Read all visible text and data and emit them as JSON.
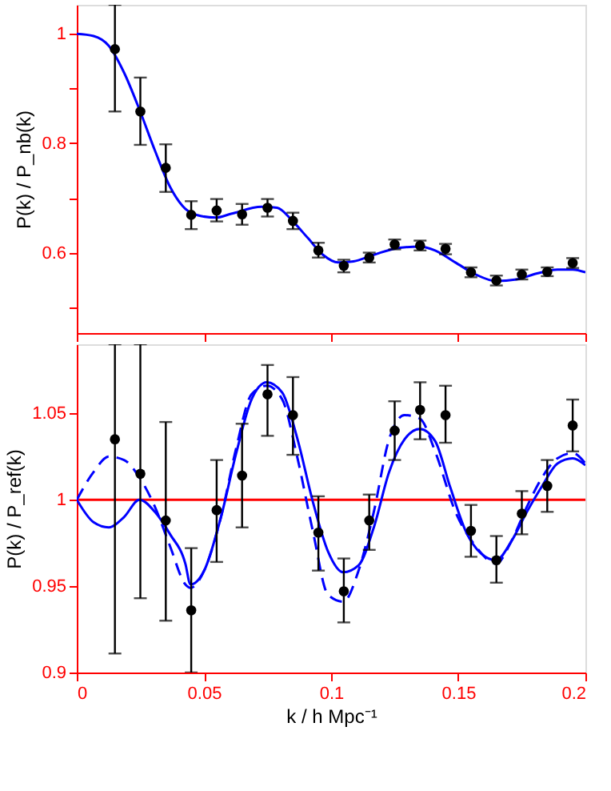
{
  "chart_data": [
    {
      "type": "scatter",
      "ylabel": "P(k) / P_nb(k)",
      "xlim": [
        0,
        0.2
      ],
      "xticks": [
        0,
        0.05,
        0.1,
        0.15,
        0.2
      ],
      "ylim": [
        0.453,
        1.053
      ],
      "yticks": [
        {
          "value": 0.5,
          "label": null
        },
        0.6,
        {
          "value": 0.7,
          "label": null
        },
        0.8,
        {
          "value": 0.9,
          "label": null
        },
        1
      ],
      "tick_labels": "y",
      "grid": false,
      "series": [
        {
          "marker": "circle",
          "color": "#000000",
          "x": [
            0.015,
            0.025,
            0.035,
            0.045,
            0.055,
            0.065,
            0.075,
            0.085,
            0.095,
            0.105,
            0.115,
            0.125,
            0.135,
            0.145,
            0.155,
            0.165,
            0.175,
            0.185,
            0.195
          ],
          "values": [
            0.972,
            0.858,
            0.755,
            0.669,
            0.677,
            0.67,
            0.682,
            0.658,
            0.604,
            0.576,
            0.591,
            0.615,
            0.613,
            0.607,
            0.564,
            0.549,
            0.56,
            0.565,
            0.581
          ],
          "errors": [
            [
              0.858,
              1.053
            ],
            [
              0.797,
              0.92
            ],
            [
              0.711,
              0.798
            ],
            [
              0.643,
              0.694
            ],
            [
              0.657,
              0.698
            ],
            [
              0.651,
              0.689
            ],
            [
              0.666,
              0.698
            ],
            [
              0.643,
              0.673
            ],
            [
              0.591,
              0.618
            ],
            [
              0.564,
              0.587
            ],
            [
              0.582,
              0.6
            ],
            [
              0.606,
              0.624
            ],
            [
              0.604,
              0.622
            ],
            [
              0.597,
              0.616
            ],
            [
              0.555,
              0.573
            ],
            [
              0.54,
              0.558
            ],
            [
              0.551,
              0.569
            ],
            [
              0.557,
              0.573
            ],
            [
              0.572,
              0.59
            ]
          ]
        },
        {
          "type": "line",
          "color": "#0000ff",
          "line_style": "solid",
          "x": [
            0,
            0.0066,
            0.0126,
            0.0186,
            0.0246,
            0.0307,
            0.0367,
            0.0427,
            0.0487,
            0.0547,
            0.0607,
            0.0727,
            0.0788,
            0.0848,
            0.0908,
            0.0968,
            0.1028,
            0.1088,
            0.1168,
            0.1269,
            0.1349,
            0.1409,
            0.1489,
            0.1569,
            0.1649,
            0.1729,
            0.181,
            0.189,
            0.195,
            0.2
          ],
          "values": [
            1.0,
            0.996,
            0.978,
            0.929,
            0.862,
            0.787,
            0.72,
            0.68,
            0.667,
            0.664,
            0.671,
            0.684,
            0.682,
            0.658,
            0.627,
            0.596,
            0.582,
            0.584,
            0.596,
            0.609,
            0.611,
            0.604,
            0.582,
            0.56,
            0.548,
            0.551,
            0.562,
            0.569,
            0.569,
            0.564
          ]
        }
      ]
    },
    {
      "type": "scatter",
      "ylabel": "P(k) / P_ref(k)",
      "xlabel": "k / h Mpc⁻¹",
      "xlim": [
        0,
        0.2
      ],
      "xticks": [
        0,
        0.05,
        0.1,
        0.15,
        0.2
      ],
      "ylim": [
        0.9,
        1.09
      ],
      "yticks": [
        0.9,
        0.95,
        1,
        1.05
      ],
      "grid": false,
      "ref_lines": [
        {
          "axis": "y",
          "value": 1,
          "color": "#ff0000"
        }
      ],
      "series": [
        {
          "marker": "circle",
          "color": "#000000",
          "x": [
            0.015,
            0.025,
            0.035,
            0.045,
            0.055,
            0.065,
            0.075,
            0.085,
            0.095,
            0.105,
            0.115,
            0.125,
            0.135,
            0.145,
            0.155,
            0.165,
            0.175,
            0.185,
            0.195
          ],
          "values": [
            1.035,
            1.015,
            0.988,
            0.936,
            0.994,
            1.014,
            1.061,
            1.049,
            0.981,
            0.947,
            0.988,
            1.04,
            1.052,
            1.049,
            0.982,
            0.965,
            0.992,
            1.008,
            1.043
          ],
          "errors": [
            [
              0.911,
              1.09
            ],
            [
              0.943,
              1.09
            ],
            [
              0.93,
              1.045
            ],
            [
              0.9,
              0.972
            ],
            [
              0.964,
              1.023
            ],
            [
              0.984,
              1.044
            ],
            [
              1.037,
              1.078
            ],
            [
              1.026,
              1.071
            ],
            [
              0.959,
              1.002
            ],
            [
              0.929,
              0.966
            ],
            [
              0.971,
              1.003
            ],
            [
              1.023,
              1.057
            ],
            [
              1.035,
              1.068
            ],
            [
              1.033,
              1.066
            ],
            [
              0.967,
              0.997
            ],
            [
              0.952,
              0.979
            ],
            [
              0.98,
              1.005
            ],
            [
              0.993,
              1.023
            ],
            [
              1.028,
              1.058
            ]
          ]
        },
        {
          "type": "line",
          "color": "#0000ff",
          "line_style": "solid",
          "x": [
            0,
            0.0066,
            0.0126,
            0.0186,
            0.0246,
            0.0307,
            0.0367,
            0.0427,
            0.0447,
            0.0501,
            0.0567,
            0.0627,
            0.0687,
            0.0747,
            0.0808,
            0.0868,
            0.0928,
            0.0988,
            0.1048,
            0.1108,
            0.1168,
            0.1228,
            0.1289,
            0.1349,
            0.1409,
            0.1469,
            0.1529,
            0.1589,
            0.1649,
            0.1709,
            0.177,
            0.183,
            0.189,
            0.195,
            0.2
          ],
          "values": [
            1.0,
            0.987,
            0.984,
            0.99,
            1.0,
            0.993,
            0.98,
            0.963,
            0.951,
            0.959,
            0.99,
            1.027,
            1.058,
            1.068,
            1.062,
            1.035,
            0.999,
            0.97,
            0.958,
            0.962,
            0.984,
            1.016,
            1.035,
            1.041,
            1.034,
            1.007,
            0.982,
            0.969,
            0.965,
            0.976,
            0.993,
            1.008,
            1.021,
            1.024,
            1.02
          ]
        },
        {
          "type": "line",
          "color": "#0000ff",
          "line_style": "dashed",
          "x": [
            0,
            0.0066,
            0.0126,
            0.0186,
            0.0246,
            0.0307,
            0.0367,
            0.0427,
            0.0447,
            0.0501,
            0.0567,
            0.0627,
            0.0687,
            0.0747,
            0.0808,
            0.0868,
            0.0928,
            0.0988,
            0.1048,
            0.1108,
            0.1168,
            0.1228,
            0.1289,
            0.1349,
            0.1409,
            0.1489,
            0.1569,
            0.1649,
            0.1709,
            0.177,
            0.183,
            0.189,
            0.195,
            0.2
          ],
          "values": [
            1.0,
            1.016,
            1.025,
            1.023,
            1.013,
            0.996,
            0.973,
            0.951,
            0.949,
            0.959,
            0.99,
            1.03,
            1.061,
            1.066,
            1.058,
            1.024,
            0.982,
            0.945,
            0.941,
            0.959,
            0.993,
            1.035,
            1.049,
            1.047,
            1.028,
            0.993,
            0.973,
            0.963,
            0.976,
            0.996,
            1.013,
            1.024,
            1.027,
            1.021
          ]
        }
      ]
    }
  ]
}
